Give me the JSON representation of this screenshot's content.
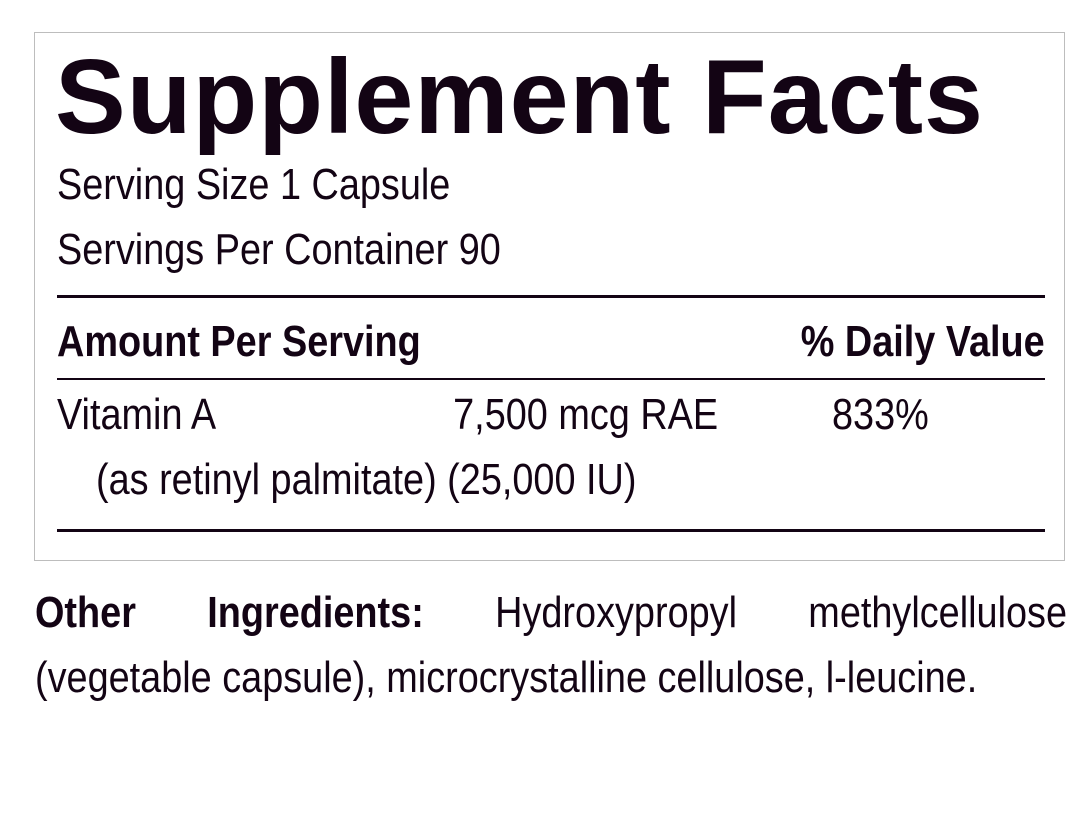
{
  "label": {
    "title": "Supplement Facts",
    "serving_size": "Serving Size 1 Capsule",
    "servings_per_container": "Servings Per Container 90",
    "header_amount": "Amount Per Serving",
    "header_dv": "% Daily Value",
    "rows": [
      {
        "name": "Vitamin A",
        "amount": "7,500 mcg RAE",
        "dv": "833%",
        "detail": "(as retinyl palmitate) (25,000 IU)"
      }
    ]
  },
  "other_ingredients": {
    "label": "Other Ingredients:",
    "text": "Hydroxypropyl methylcellulose (vegetable capsule), microcrystalline cellulose, l-leucine."
  },
  "colors": {
    "text": "#130414",
    "border": "#bdbdbd"
  }
}
